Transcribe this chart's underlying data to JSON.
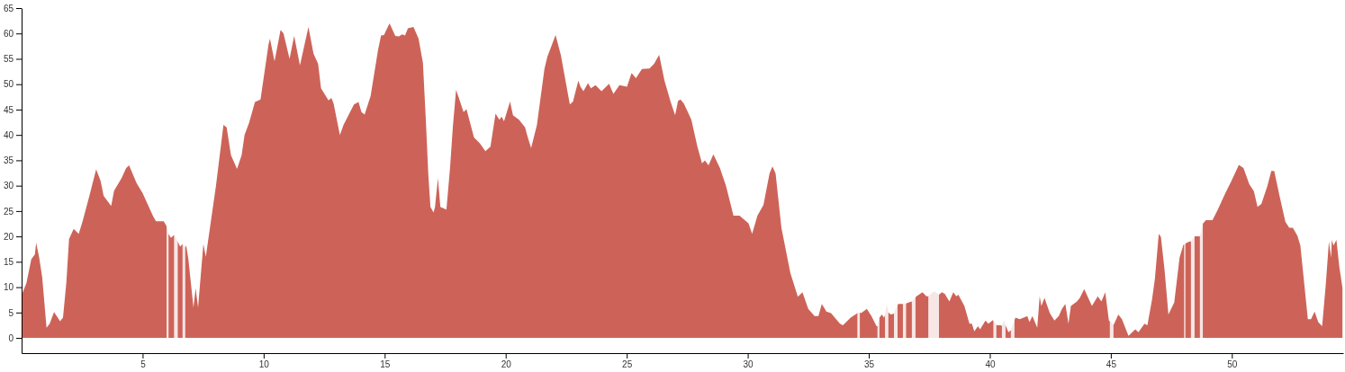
{
  "chart_data": {
    "type": "area",
    "xlim": [
      0,
      54.6
    ],
    "ylim": [
      -3,
      65
    ],
    "xticks": [
      5,
      10,
      15,
      20,
      25,
      30,
      35,
      40,
      45,
      50
    ],
    "yticks": [
      0,
      5,
      10,
      15,
      20,
      25,
      30,
      35,
      40,
      45,
      50,
      55,
      60,
      65
    ],
    "x": [
      0,
      0.2,
      0.4,
      0.55,
      0.6,
      0.72,
      0.85,
      1.03,
      1.16,
      1.34,
      1.59,
      1.71,
      1.85,
      1.96,
      2.15,
      2.36,
      2.52,
      2.8,
      3.08,
      3.26,
      3.39,
      3.7,
      3.82,
      4.13,
      4.32,
      4.44,
      4.75,
      5.0,
      5.43,
      5.55,
      5.87,
      5.99,
      6.03,
      6.07,
      6.17,
      6.3,
      6.37,
      6.45,
      6.55,
      6.65,
      6.7,
      6.76,
      6.8,
      6.89,
      7.1,
      7.19,
      7.29,
      7.51,
      7.61,
      8.03,
      8.34,
      8.47,
      8.65,
      8.9,
      9.09,
      9.21,
      9.4,
      9.64,
      9.87,
      10.2,
      10.26,
      10.45,
      10.7,
      10.82,
      11.07,
      11.26,
      11.5,
      11.85,
      12.06,
      12.25,
      12.37,
      12.68,
      12.8,
      12.89,
      13.15,
      13.3,
      13.73,
      13.92,
      14.04,
      14.17,
      14.42,
      14.72,
      14.85,
      14.97,
      15.2,
      15.44,
      15.59,
      15.72,
      15.84,
      15.96,
      16.19,
      16.4,
      16.58,
      16.7,
      16.8,
      16.89,
      17.02,
      17.08,
      17.2,
      17.3,
      17.55,
      17.7,
      17.82,
      17.95,
      18.26,
      18.38,
      18.69,
      18.94,
      19.16,
      19.37,
      19.58,
      19.74,
      19.83,
      19.93,
      20.18,
      20.3,
      20.55,
      20.8,
      20.9,
      21.05,
      21.29,
      21.6,
      21.72,
      21.91,
      22.06,
      22.28,
      22.47,
      22.65,
      22.78,
      23.0,
      23.09,
      23.21,
      23.4,
      23.52,
      23.71,
      23.96,
      24.27,
      24.45,
      24.7,
      25.01,
      25.2,
      25.38,
      25.63,
      25.94,
      26.13,
      26.34,
      26.56,
      26.81,
      27.0,
      27.12,
      27.22,
      27.36,
      27.67,
      27.92,
      28.11,
      28.23,
      28.38,
      28.58,
      28.85,
      29.1,
      29.41,
      29.66,
      30.03,
      30.18,
      30.4,
      30.65,
      30.9,
      31.02,
      31.15,
      31.39,
      31.76,
      32.07,
      32.26,
      32.5,
      32.76,
      32.92,
      33.06,
      33.25,
      33.44,
      33.81,
      33.93,
      34.25,
      34.53,
      34.58,
      34.63,
      34.68,
      34.92,
      35.11,
      35.32,
      35.36,
      35.4,
      35.44,
      35.54,
      35.63,
      35.67,
      35.74,
      35.81,
      35.91,
      36.04,
      36.1,
      36.19,
      36.22,
      36.41,
      36.47,
      36.54,
      36.66,
      36.78,
      36.85,
      36.93,
      36.97,
      37.22,
      37.38,
      37.46,
      37.7,
      37.9,
      38.02,
      38.14,
      38.33,
      38.49,
      38.62,
      38.7,
      38.95,
      39.16,
      39.26,
      39.36,
      39.51,
      39.6,
      39.82,
      39.94,
      40.13,
      40.15,
      40.21,
      40.27,
      40.31,
      40.44,
      40.5,
      40.58,
      40.65,
      40.77,
      40.87,
      40.95,
      41.02,
      41.06,
      41.24,
      41.55,
      41.64,
      41.76,
      41.96,
      42.06,
      42.13,
      42.26,
      42.48,
      42.67,
      42.85,
      42.98,
      43.12,
      43.25,
      43.35,
      43.6,
      43.72,
      43.9,
      44.22,
      44.46,
      44.61,
      44.77,
      44.92,
      44.96,
      45.03,
      45.11,
      45.14,
      45.31,
      45.46,
      45.73,
      46.01,
      46.14,
      46.39,
      46.51,
      46.7,
      46.82,
      46.98,
      47.07,
      47.22,
      47.38,
      47.62,
      47.84,
      48.0,
      48.03,
      48.05,
      48.08,
      48.25,
      48.31,
      48.38,
      48.46,
      48.53,
      48.68,
      48.74,
      48.8,
      48.93,
      49.2,
      49.42,
      49.73,
      49.98,
      50.29,
      50.48,
      50.72,
      50.91,
      51.06,
      51.22,
      51.47,
      51.63,
      51.75,
      51.96,
      52.21,
      52.37,
      52.52,
      52.71,
      52.83,
      53.14,
      53.27,
      53.42,
      53.57,
      53.73,
      53.88,
      54.01,
      54.1,
      54.13,
      54.2,
      54.32,
      54.44,
      54.57
    ],
    "series": [
      {
        "color": "#f7e6e6",
        "values": [
          null,
          null,
          null,
          null,
          null,
          null,
          null,
          null,
          null,
          null,
          null,
          null,
          null,
          null,
          null,
          null,
          null,
          null,
          null,
          null,
          null,
          null,
          null,
          null,
          null,
          null,
          null,
          null,
          null,
          null,
          null,
          22,
          21.3,
          20.5,
          null,
          20.3,
          19.7,
          19,
          null,
          18.5,
          18.2,
          17.8,
          null,
          null,
          null,
          null,
          null,
          null,
          null,
          null,
          null,
          null,
          null,
          null,
          null,
          null,
          null,
          null,
          null,
          null,
          null,
          null,
          null,
          null,
          null,
          null,
          null,
          null,
          null,
          null,
          null,
          null,
          null,
          null,
          null,
          null,
          null,
          null,
          null,
          null,
          null,
          null,
          null,
          null,
          null,
          null,
          null,
          null,
          null,
          null,
          null,
          null,
          null,
          null,
          null,
          null,
          null,
          null,
          null,
          null,
          null,
          null,
          null,
          null,
          null,
          null,
          null,
          null,
          null,
          null,
          null,
          null,
          null,
          null,
          null,
          null,
          null,
          null,
          null,
          null,
          null,
          null,
          null,
          null,
          null,
          null,
          null,
          null,
          null,
          null,
          null,
          null,
          null,
          null,
          null,
          null,
          null,
          null,
          null,
          null,
          null,
          null,
          null,
          null,
          null,
          null,
          null,
          null,
          null,
          null,
          null,
          null,
          null,
          null,
          null,
          null,
          null,
          null,
          null,
          null,
          null,
          null,
          null,
          null,
          null,
          null,
          null,
          null,
          null,
          null,
          null,
          null,
          null,
          null,
          null,
          null,
          null,
          null,
          null,
          null,
          null,
          null,
          4.9,
          5,
          5,
          null,
          null,
          null,
          null,
          2.3,
          3.2,
          4,
          null,
          null,
          4.5,
          6.7,
          5,
          null,
          4.8,
          5.6,
          6.5,
          null,
          6.7,
          6.8,
          6.8,
          null,
          7.2,
          7.6,
          8,
          null,
          null,
          null,
          8.2,
          9.2,
          8.5,
          null,
          null,
          null,
          null,
          null,
          null,
          null,
          null,
          null,
          null,
          null,
          null,
          null,
          null,
          null,
          3.3,
          3,
          2.6,
          null,
          null,
          2.4,
          3.4,
          2.5,
          null,
          1.5,
          2.5,
          3.5,
          null,
          null,
          null,
          null,
          null,
          null,
          null,
          null,
          null,
          null,
          null,
          null,
          null,
          null,
          null,
          null,
          null,
          null,
          null,
          null,
          null,
          null,
          null,
          null,
          3.3,
          3,
          2.6,
          null,
          null,
          null,
          null,
          null,
          null,
          null,
          null,
          null,
          null,
          null,
          null,
          null,
          null,
          null,
          null,
          null,
          18.4,
          18.5,
          18.6,
          null,
          19,
          19.5,
          20,
          null,
          20,
          21.2,
          22.5,
          null,
          null,
          null,
          null,
          null,
          null,
          null,
          null,
          null,
          null,
          null,
          null,
          null,
          null,
          null,
          null,
          null,
          null,
          null,
          null,
          null,
          null,
          null,
          null,
          null,
          null,
          null,
          null,
          null,
          null,
          null,
          null,
          null
        ]
      },
      {
        "color": "#cd6358",
        "values": [
          8.4,
          10.8,
          15.5,
          16.5,
          18.8,
          16,
          12,
          2,
          2.8,
          5.1,
          3.3,
          4,
          11,
          19.5,
          21.5,
          20.5,
          23,
          28,
          33.2,
          31,
          28,
          26,
          29,
          31.5,
          33.5,
          34,
          30.5,
          28.5,
          24,
          23,
          23,
          22,
          null,
          20.5,
          19.7,
          20.3,
          null,
          19,
          18,
          18.5,
          null,
          17.8,
          18.2,
          15.5,
          6,
          9.8,
          6,
          18.5,
          16,
          30,
          42,
          41.5,
          36,
          33.3,
          36,
          40,
          42.4,
          46.5,
          47,
          57.8,
          59,
          54.5,
          60.7,
          60,
          55,
          59.5,
          53.7,
          61.3,
          56,
          54,
          49.2,
          46.8,
          47.3,
          46.2,
          40,
          42,
          46,
          46.5,
          44.5,
          44,
          47.7,
          56.6,
          59.6,
          59.7,
          62,
          59.5,
          59.4,
          59.8,
          59.6,
          61,
          61.3,
          59,
          54.2,
          43,
          32.4,
          25.8,
          24.7,
          25.8,
          31.5,
          25.8,
          25.3,
          33.5,
          41.8,
          48.9,
          44.5,
          45.1,
          39.5,
          38.3,
          36.8,
          37.7,
          44.2,
          43,
          43.6,
          42.7,
          46.6,
          43.9,
          43,
          41.5,
          39.7,
          37.4,
          42,
          53,
          55.4,
          57.8,
          59.7,
          55.7,
          50.7,
          46,
          46.6,
          50.7,
          49.5,
          48.6,
          50.2,
          49.2,
          49.8,
          48.6,
          50.1,
          48.1,
          49.8,
          49.5,
          52.2,
          51.2,
          53,
          53.1,
          54,
          55.8,
          50.7,
          46.6,
          43.9,
          46.7,
          47,
          46.2,
          43,
          37.7,
          34.4,
          35,
          34,
          36.2,
          33.5,
          30,
          24.1,
          24.1,
          22.6,
          20.5,
          24.1,
          26.2,
          32.4,
          33.8,
          32.4,
          21.7,
          12.8,
          8.1,
          9,
          5.7,
          4.3,
          4.3,
          6.7,
          5.2,
          4.9,
          2.8,
          2.5,
          4,
          4.9,
          null,
          5,
          4.9,
          5.7,
          4.3,
          2.3,
          2.3,
          null,
          4,
          4.6,
          4,
          4.5,
          null,
          5,
          4.6,
          4.8,
          null,
          6.5,
          6.7,
          6.7,
          null,
          6.8,
          7,
          7.2,
          null,
          8,
          8.2,
          9,
          8.2,
          8.2,
          null,
          8.5,
          9,
          8.7,
          7.2,
          9,
          8.2,
          8.5,
          6.3,
          2.8,
          2.8,
          1.3,
          2.3,
          1.7,
          3.4,
          2.8,
          3.5,
          3.3,
          null,
          2.6,
          2.5,
          2.5,
          2.4,
          null,
          2.5,
          1.1,
          1.5,
          null,
          3.5,
          4,
          3.7,
          4.3,
          3.1,
          4.3,
          2,
          8.2,
          6.3,
          7.9,
          4.9,
          3.4,
          4.3,
          5.7,
          6.7,
          2.8,
          6.3,
          7.2,
          7.9,
          9.6,
          6.3,
          8.2,
          7.2,
          9,
          3.4,
          3.3,
          null,
          2.6,
          2.8,
          4.6,
          3.7,
          0.4,
          1.7,
          1.1,
          2.8,
          2.5,
          7.5,
          11.6,
          20.5,
          19.9,
          13.4,
          4.6,
          7,
          15.8,
          18.4,
          18.4,
          null,
          18.6,
          19,
          19,
          null,
          20,
          20,
          20,
          null,
          22.5,
          23.2,
          23.2,
          25.3,
          28.5,
          30.9,
          34.1,
          33.5,
          30.3,
          28.9,
          25.8,
          26.4,
          30,
          32.9,
          32.9,
          28.2,
          22.9,
          21.7,
          21.7,
          20.1,
          18.2,
          3.7,
          3.7,
          5.2,
          3.1,
          2.3,
          10.5,
          19,
          15.8,
          19.3,
          18.2,
          19.3,
          14,
          9.9
        ]
      }
    ]
  }
}
